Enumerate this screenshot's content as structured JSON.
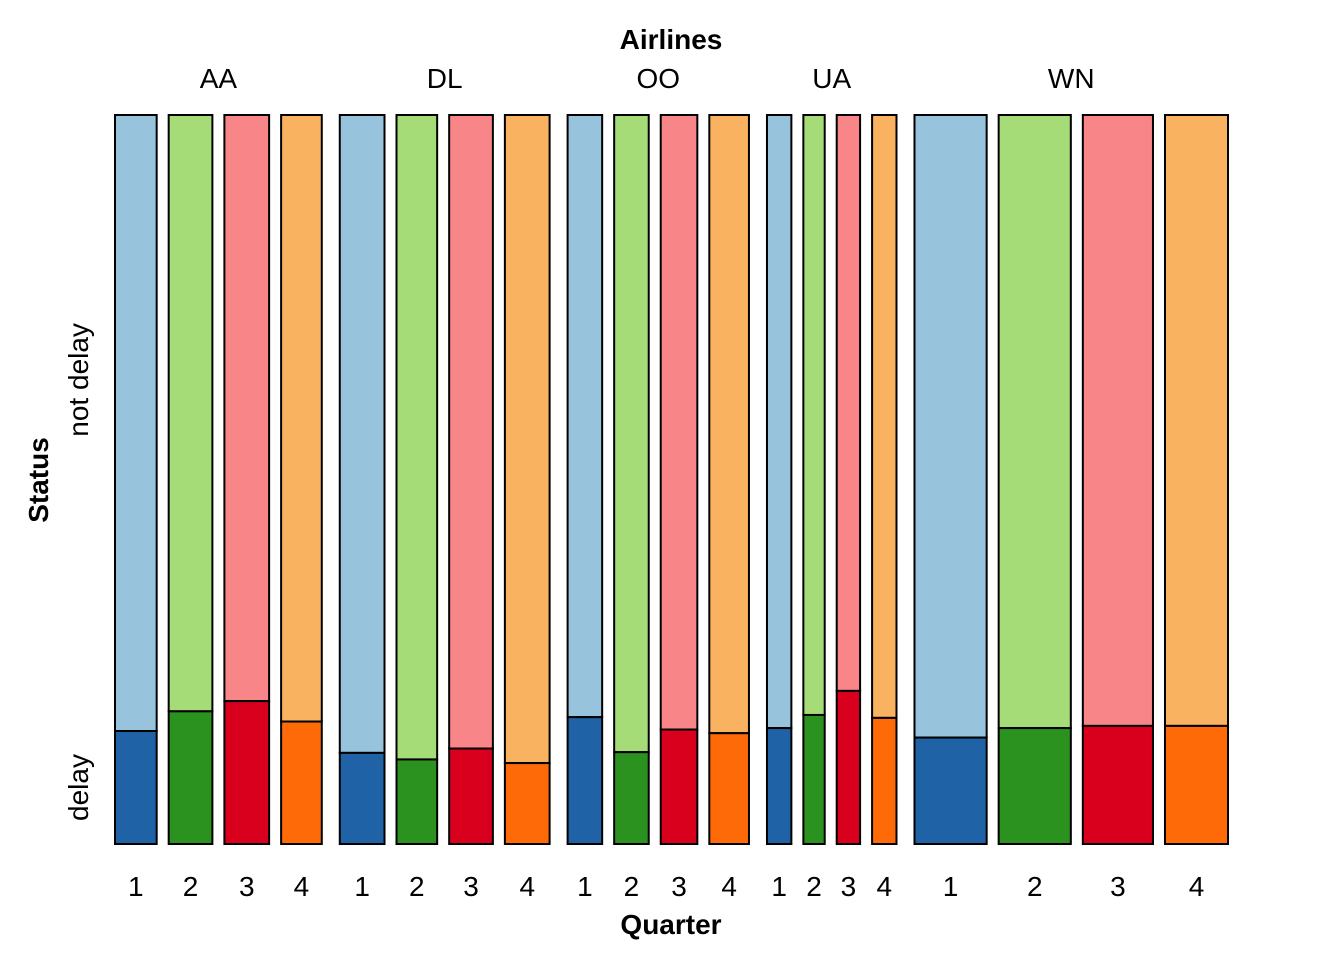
{
  "chart_data": {
    "type": "mosaic",
    "title": "Airlines",
    "xlabel": "Quarter",
    "ylabel": "Status",
    "status_levels": [
      "delay",
      "not delay"
    ],
    "groups": [
      {
        "name": "AA",
        "quarters": [
          {
            "label": "1",
            "relative_width": 0.041,
            "delay_fraction": 0.155
          },
          {
            "label": "2",
            "relative_width": 0.043,
            "delay_fraction": 0.182
          },
          {
            "label": "3",
            "relative_width": 0.044,
            "delay_fraction": 0.196
          },
          {
            "label": "4",
            "relative_width": 0.04,
            "delay_fraction": 0.168
          }
        ]
      },
      {
        "name": "DL",
        "quarters": [
          {
            "label": "1",
            "relative_width": 0.044,
            "delay_fraction": 0.125
          },
          {
            "label": "2",
            "relative_width": 0.04,
            "delay_fraction": 0.116
          },
          {
            "label": "3",
            "relative_width": 0.043,
            "delay_fraction": 0.131
          },
          {
            "label": "4",
            "relative_width": 0.044,
            "delay_fraction": 0.111
          }
        ]
      },
      {
        "name": "OO",
        "quarters": [
          {
            "label": "1",
            "relative_width": 0.034,
            "delay_fraction": 0.174
          },
          {
            "label": "2",
            "relative_width": 0.034,
            "delay_fraction": 0.126
          },
          {
            "label": "3",
            "relative_width": 0.036,
            "delay_fraction": 0.157
          },
          {
            "label": "4",
            "relative_width": 0.039,
            "delay_fraction": 0.152
          }
        ]
      },
      {
        "name": "UA",
        "quarters": [
          {
            "label": "1",
            "relative_width": 0.024,
            "delay_fraction": 0.159
          },
          {
            "label": "2",
            "relative_width": 0.021,
            "delay_fraction": 0.177
          },
          {
            "label": "3",
            "relative_width": 0.023,
            "delay_fraction": 0.21
          },
          {
            "label": "4",
            "relative_width": 0.024,
            "delay_fraction": 0.173
          }
        ]
      },
      {
        "name": "WN",
        "quarters": [
          {
            "label": "1",
            "relative_width": 0.071,
            "delay_fraction": 0.146
          },
          {
            "label": "2",
            "relative_width": 0.071,
            "delay_fraction": 0.159
          },
          {
            "label": "3",
            "relative_width": 0.069,
            "delay_fraction": 0.162
          },
          {
            "label": "4",
            "relative_width": 0.062,
            "delay_fraction": 0.162
          }
        ]
      }
    ],
    "colors": {
      "delay": [
        "#1f63a6",
        "#2c921f",
        "#d9001e",
        "#ff6a08"
      ],
      "not_delay": [
        "#97c3dc",
        "#a5dc78",
        "#f88688",
        "#f9b25f"
      ],
      "outline": "#000000"
    },
    "grid": false,
    "legend": "none"
  }
}
